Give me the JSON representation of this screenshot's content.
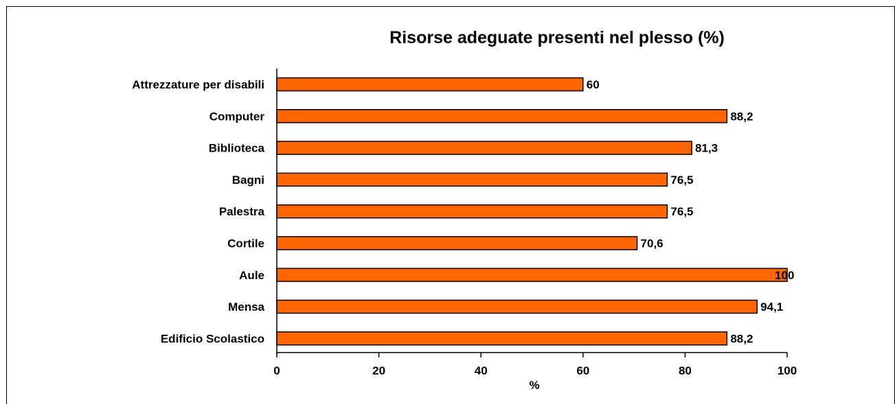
{
  "chart_data": {
    "type": "bar",
    "orientation": "horizontal",
    "title": "Risorse adeguate presenti nel plesso (%)",
    "xlabel": "%",
    "ylabel": "",
    "categories": [
      "Attrezzature per disabili",
      "Computer",
      "Biblioteca",
      "Bagni",
      "Palestra",
      "Cortile",
      "Aule",
      "Mensa",
      "Edificio Scolastico"
    ],
    "values": [
      60,
      88.2,
      81.3,
      76.5,
      76.5,
      70.6,
      100,
      94.1,
      88.2
    ],
    "value_labels": [
      "60",
      "88,2",
      "81,3",
      "76,5",
      "76,5",
      "70,6",
      "100",
      "94,1",
      "88,2"
    ],
    "xlim": [
      0,
      100
    ],
    "x_ticks": [
      "0",
      "20",
      "40",
      "60",
      "80",
      "100"
    ],
    "bar_color": "#FF6600",
    "grid": false,
    "legend": "none"
  }
}
